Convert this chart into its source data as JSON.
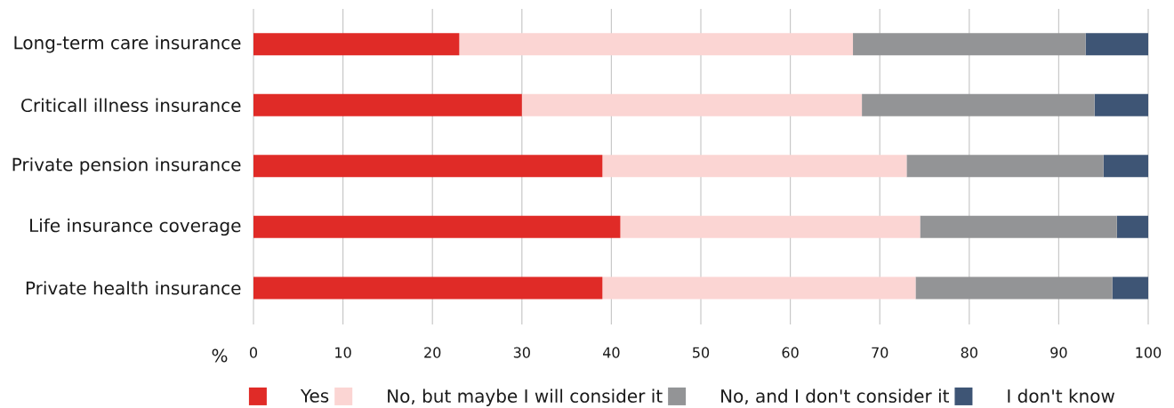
{
  "chart_data": {
    "type": "bar",
    "orientation": "horizontal",
    "stacked": true,
    "categories": [
      "Long-term care insurance",
      "Criticall illness insurance",
      "Private pension insurance",
      "Life insurance coverage",
      "Private health insurance"
    ],
    "series": [
      {
        "name": "Yes",
        "color": "#e02b27",
        "values": [
          23,
          30,
          39,
          41,
          39
        ]
      },
      {
        "name": "No, but maybe I will consider it",
        "color": "#fbd5d3",
        "values": [
          44,
          38,
          34,
          33.5,
          35
        ]
      },
      {
        "name": "No, and I don't consider it",
        "color": "#939496",
        "values": [
          26,
          26,
          22,
          22,
          22
        ]
      },
      {
        "name": "I don't know",
        "color": "#3e5575",
        "values": [
          7,
          6,
          5,
          3.5,
          4
        ]
      }
    ],
    "xlim": [
      0,
      100
    ],
    "xticks": [
      0,
      10,
      20,
      30,
      40,
      50,
      60,
      70,
      80,
      90,
      100
    ],
    "xlabel": "%",
    "grid": "x",
    "legend": "bottom"
  }
}
